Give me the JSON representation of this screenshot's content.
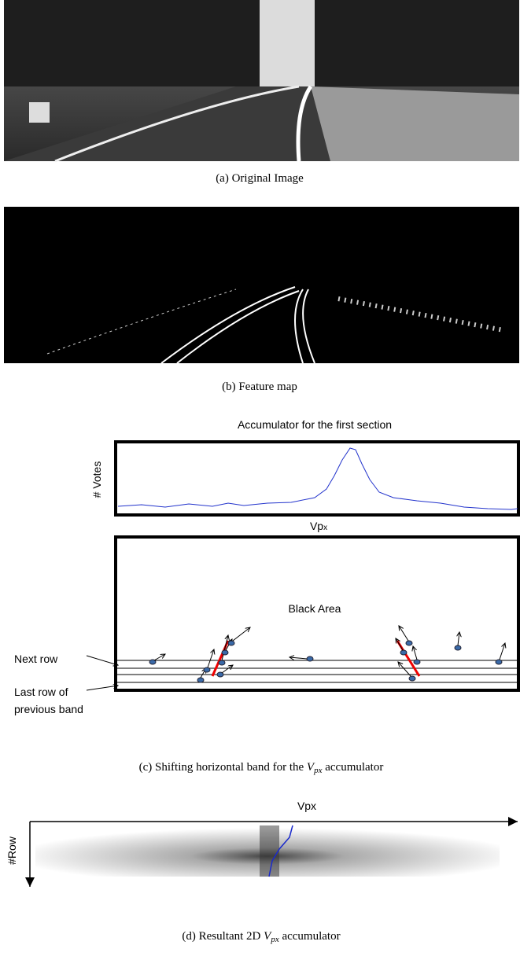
{
  "panel_a": {
    "caption": "(a) Original Image"
  },
  "panel_b": {
    "caption": "(b) Feature map"
  },
  "panel_c": {
    "title": "Accumulator for the first section",
    "y_label": "# Votes",
    "x_label": "Vp",
    "x_label_sub": "x",
    "area_label": "Black Area",
    "next_row": "Next row",
    "last_row": [
      "Last row of",
      "previous band"
    ],
    "caption": {
      "prefix": "(c) Shifting horizontal band for the ",
      "var": "V",
      "sub": "px",
      "suffix": " accumulator"
    }
  },
  "panel_d": {
    "x_label": "Vpx",
    "y_label": "#Row",
    "caption": {
      "prefix": "(d) Resultant 2D ",
      "var": "V",
      "sub": "px",
      "suffix": " accumulator"
    }
  }
}
